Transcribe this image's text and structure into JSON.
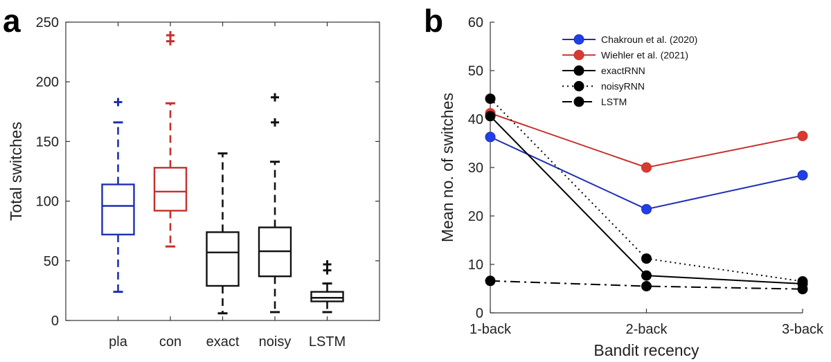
{
  "panel_a_letter": "a",
  "panel_b_letter": "b",
  "chart_data": [
    {
      "type": "box",
      "ylabel": "Total switches",
      "xlabel": "",
      "ylim": [
        0,
        250
      ],
      "yticks": [
        0,
        50,
        100,
        150,
        200,
        250
      ],
      "categories": [
        "pla",
        "con",
        "exact",
        "noisy",
        "LSTM"
      ],
      "colors": [
        "#1f2fb4",
        "#c4302b",
        "#111111",
        "#111111",
        "#111111"
      ],
      "boxes": [
        {
          "name": "pla",
          "whisker_low": 24,
          "q1": 72,
          "median": 96,
          "q3": 114,
          "whisker_high": 166,
          "outliers": [
            183
          ]
        },
        {
          "name": "con",
          "whisker_low": 62,
          "q1": 92,
          "median": 108,
          "q3": 128,
          "whisker_high": 182,
          "outliers": [
            234,
            239
          ]
        },
        {
          "name": "exact",
          "whisker_low": 6,
          "q1": 29,
          "median": 57,
          "q3": 74,
          "whisker_high": 140,
          "outliers": []
        },
        {
          "name": "noisy",
          "whisker_low": 7,
          "q1": 37,
          "median": 58,
          "q3": 78,
          "whisker_high": 133,
          "outliers": [
            166,
            187
          ]
        },
        {
          "name": "LSTM",
          "whisker_low": 7,
          "q1": 16,
          "median": 19,
          "q3": 24,
          "whisker_high": 31,
          "outliers": [
            42,
            47
          ]
        }
      ],
      "grid": false
    },
    {
      "type": "line",
      "ylabel": "Mean no. of switches",
      "xlabel": "Bandit recency",
      "categories": [
        "1-back",
        "2-back",
        "3-back"
      ],
      "ylim": [
        0,
        60
      ],
      "yticks": [
        0,
        10,
        20,
        30,
        40,
        50,
        60
      ],
      "grid": false,
      "legend_position": "top-center",
      "series": [
        {
          "name": "Chakroun et al. (2020)",
          "values": [
            36.3,
            21.4,
            28.4
          ],
          "color": "#1f2fb4",
          "dash": "solid",
          "marker_color": "#1f3fe8"
        },
        {
          "name": "Wiehler et al. (2021)",
          "values": [
            41.2,
            30.0,
            36.5
          ],
          "color": "#c4302b",
          "dash": "solid",
          "marker_color": "#d93a30"
        },
        {
          "name": "exactRNN",
          "values": [
            40.6,
            7.7,
            6.0
          ],
          "color": "#000000",
          "dash": "solid",
          "marker_color": "#000000"
        },
        {
          "name": "noisyRNN",
          "values": [
            44.2,
            11.2,
            6.5
          ],
          "color": "#000000",
          "dash": "dotted",
          "marker_color": "#000000"
        },
        {
          "name": "LSTM",
          "values": [
            6.6,
            5.5,
            4.9
          ],
          "color": "#000000",
          "dash": "dashdot",
          "marker_color": "#000000"
        }
      ]
    }
  ]
}
